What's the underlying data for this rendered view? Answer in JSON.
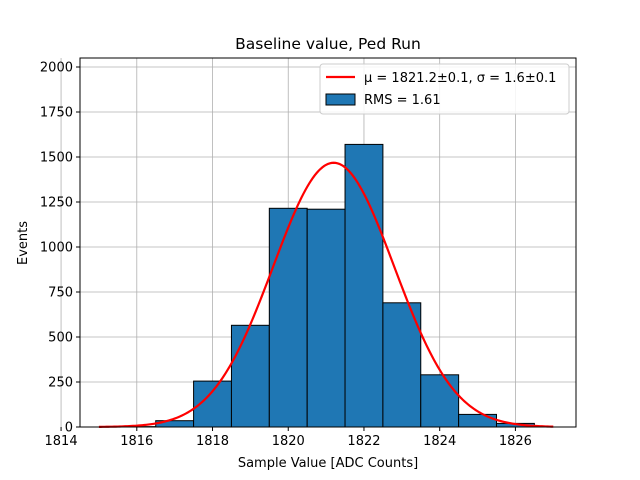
{
  "chart_data": {
    "type": "bar",
    "title": "Baseline value, Ped Run",
    "xlabel": "Sample Value [ADC Counts]",
    "ylabel": "Events",
    "xlim": [
      1814.5,
      1827.6
    ],
    "ylim": [
      0,
      2050
    ],
    "xticks": [
      1814,
      1816,
      1818,
      1820,
      1822,
      1824,
      1826
    ],
    "yticks": [
      0,
      250,
      500,
      750,
      1000,
      1250,
      1500,
      1750,
      2000
    ],
    "grid": true,
    "legend_position": "top-right",
    "histogram": {
      "name": "RMS = 1.61",
      "color": "#1f77b4",
      "edge_color": "#000000",
      "bin_edges": [
        1814.5,
        1815.5,
        1816.5,
        1817.5,
        1818.5,
        1819.5,
        1820.5,
        1821.5,
        1822.5,
        1823.5,
        1824.5,
        1825.5,
        1826.5,
        1827.5
      ],
      "counts": [
        0,
        2,
        35,
        255,
        565,
        1215,
        1210,
        1570,
        690,
        290,
        70,
        20,
        0
      ]
    },
    "fit": {
      "name": "μ = 1821.2±0.1, σ = 1.6±0.1",
      "color": "#ff0000",
      "mu": 1821.2,
      "sigma": 1.6,
      "amplitude": 1468,
      "x_range": [
        1815,
        1827
      ]
    }
  }
}
